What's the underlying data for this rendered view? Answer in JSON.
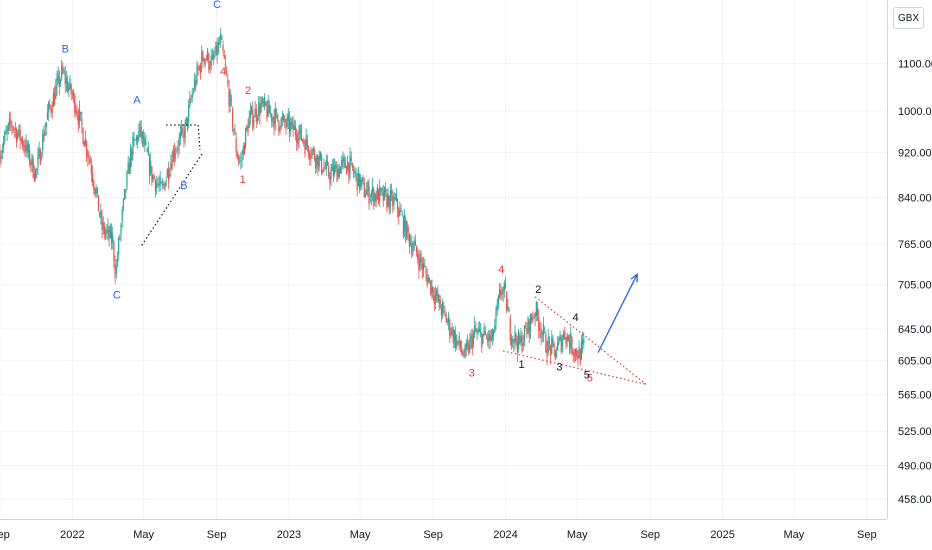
{
  "currency": "GBX",
  "chart_data": {
    "type": "candlestick",
    "x_start": "2021-09-01",
    "x_end": "2025-10-05",
    "y_scale": "log",
    "ylim": [
      440,
      1250
    ],
    "grid": true,
    "up_color": "#26a69a",
    "down_color": "#ef5350",
    "y_ticks": [
      "1100.00",
      "1000.00",
      "920.00",
      "840.00",
      "765.00",
      "705.00",
      "645.00",
      "605.00",
      "565.00",
      "525.00",
      "490.00",
      "458.00"
    ],
    "x_ticks": [
      "Sep",
      "2022",
      "May",
      "Sep",
      "2023",
      "May",
      "Sep",
      "2024",
      "May",
      "Sep",
      "2025",
      "May",
      "Sep"
    ],
    "price_path": [
      [
        "2021-09-01",
        920
      ],
      [
        "2021-09-20",
        975
      ],
      [
        "2021-10-10",
        940
      ],
      [
        "2021-11-01",
        880
      ],
      [
        "2021-11-20",
        990
      ],
      [
        "2021-12-15",
        1080
      ],
      [
        "2022-01-05",
        1020
      ],
      [
        "2022-02-01",
        900
      ],
      [
        "2022-02-20",
        790
      ],
      [
        "2022-03-10",
        770
      ],
      [
        "2022-03-15",
        720
      ],
      [
        "2022-03-25",
        800
      ],
      [
        "2022-04-10",
        920
      ],
      [
        "2022-04-25",
        960
      ],
      [
        "2022-05-15",
        880
      ],
      [
        "2022-06-01",
        850
      ],
      [
        "2022-06-20",
        920
      ],
      [
        "2022-07-10",
        960
      ],
      [
        "2022-07-25",
        1050
      ],
      [
        "2022-08-10",
        1120
      ],
      [
        "2022-08-25",
        1100
      ],
      [
        "2022-09-08",
        1150
      ],
      [
        "2022-09-20",
        1050
      ],
      [
        "2022-10-05",
        920
      ],
      [
        "2022-10-12",
        900
      ],
      [
        "2022-10-25",
        980
      ],
      [
        "2022-11-15",
        1010
      ],
      [
        "2022-12-15",
        980
      ],
      [
        "2023-01-15",
        960
      ],
      [
        "2023-02-10",
        920
      ],
      [
        "2023-03-10",
        880
      ],
      [
        "2023-04-10",
        900
      ],
      [
        "2023-05-10",
        850
      ],
      [
        "2023-06-10",
        840
      ],
      [
        "2023-07-01",
        830
      ],
      [
        "2023-07-20",
        780
      ],
      [
        "2023-08-10",
        740
      ],
      [
        "2023-09-10",
        680
      ],
      [
        "2023-10-10",
        630
      ],
      [
        "2023-10-25",
        610
      ],
      [
        "2023-11-10",
        640
      ],
      [
        "2023-12-10",
        630
      ],
      [
        "2023-12-25",
        700
      ],
      [
        "2024-01-01",
        690
      ],
      [
        "2024-01-10",
        640
      ],
      [
        "2024-01-25",
        625
      ],
      [
        "2024-02-10",
        650
      ],
      [
        "2024-02-20",
        670
      ],
      [
        "2024-03-10",
        625
      ],
      [
        "2024-03-25",
        615
      ],
      [
        "2024-04-10",
        640
      ],
      [
        "2024-04-25",
        620
      ],
      [
        "2024-05-05",
        612
      ],
      [
        "2024-05-12",
        622
      ]
    ],
    "wave_labels": [
      {
        "text": "B",
        "date": "2021-12-20",
        "price": 1125,
        "color": "#2962ff"
      },
      {
        "text": "C",
        "date": "2022-03-17",
        "price": 686,
        "color": "#2962ff"
      },
      {
        "text": "A",
        "date": "2022-04-20",
        "price": 1015,
        "color": "#2962ff"
      },
      {
        "text": "B",
        "date": "2022-07-08",
        "price": 855,
        "color": "#2962ff"
      },
      {
        "text": "C",
        "date": "2022-09-02",
        "price": 1230,
        "color": "#2962ff"
      },
      {
        "text": "4",
        "date": "2022-09-12",
        "price": 1075,
        "color": "#e53935"
      },
      {
        "text": "1",
        "date": "2022-10-15",
        "price": 865,
        "color": "#e53935"
      },
      {
        "text": "2",
        "date": "2022-10-24",
        "price": 1035,
        "color": "#e53935"
      },
      {
        "text": "4",
        "date": "2023-12-25",
        "price": 722,
        "color": "#e53935"
      },
      {
        "text": "3",
        "date": "2023-11-05",
        "price": 586,
        "color": "#e53935"
      },
      {
        "text": "5",
        "date": "2024-05-22",
        "price": 580,
        "color": "#e53935"
      },
      {
        "text": "2",
        "date": "2024-02-25",
        "price": 693,
        "color": "#131722"
      },
      {
        "text": "1",
        "date": "2024-01-28",
        "price": 596,
        "color": "#131722"
      },
      {
        "text": "3",
        "date": "2024-04-01",
        "price": 593,
        "color": "#131722"
      },
      {
        "text": "4",
        "date": "2024-04-28",
        "price": 655,
        "color": "#131722"
      },
      {
        "text": "5",
        "date": "2024-05-17",
        "price": 584,
        "color": "#131722"
      }
    ],
    "trendlines": [
      {
        "name": "upper-wedge-line",
        "color": "#e53935",
        "dash": "dotted",
        "from": [
          "2024-02-20",
          688
        ],
        "to": [
          "2024-08-25",
          577
        ]
      },
      {
        "name": "lower-wedge-line",
        "color": "#e53935",
        "dash": "dotted",
        "from": [
          "2023-12-28",
          617
        ],
        "to": [
          "2024-08-25",
          577
        ]
      },
      {
        "name": "triangle-diag-line",
        "color": "#131722",
        "dash": "dotted",
        "from": [
          "2022-04-28",
          763
        ],
        "to": [
          "2022-08-08",
          918
        ]
      },
      {
        "name": "triangle-top-line",
        "color": "#131722",
        "dash": "dotted",
        "from": [
          "2022-06-08",
          972
        ],
        "to": [
          "2022-08-01",
          972
        ]
      },
      {
        "name": "triangle-right-line",
        "color": "#131722",
        "dash": "dotted",
        "from": [
          "2022-08-01",
          972
        ],
        "to": [
          "2022-08-04",
          925
        ]
      }
    ],
    "projection_arrow": {
      "color": "#2962ff",
      "from": [
        "2024-06-05",
        615
      ],
      "to": [
        "2024-08-10",
        720
      ]
    }
  }
}
